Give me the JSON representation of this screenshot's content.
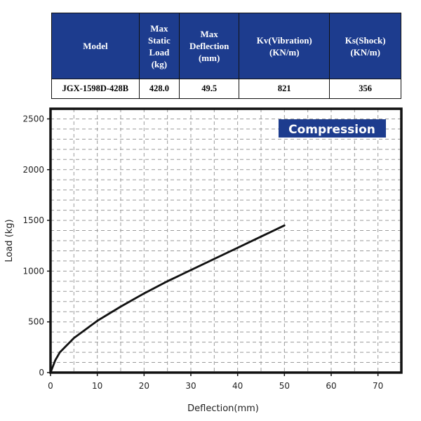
{
  "table": {
    "headers": [
      "Model",
      "Max Static Load (kg)",
      "Max Deflection (mm)",
      "Kv(Vibration) (KN/m)",
      "Ks(Shock) (KN/m)"
    ],
    "row": [
      "JGX-1598D-428B",
      "428.0",
      "49.5",
      "821",
      "356"
    ],
    "header_color": "#1d3c8e"
  },
  "chart_data": {
    "type": "line",
    "annotation": "Compression",
    "annotation_color": "#1d3c8e",
    "xlabel": "Deflection(mm)",
    "ylabel": "Load (kg)",
    "xlim": [
      0,
      75
    ],
    "ylim": [
      0,
      2600
    ],
    "xticks": [
      "0",
      "10",
      "20",
      "30",
      "40",
      "50",
      "60",
      "70"
    ],
    "yticks": [
      "0",
      "500",
      "1000",
      "1500",
      "2000",
      "2500"
    ],
    "grid": true,
    "series": [
      {
        "x": [
          0,
          1,
          2,
          5,
          10,
          15,
          20,
          25,
          30,
          35,
          40,
          45,
          50
        ],
        "y": [
          0,
          120,
          200,
          340,
          510,
          650,
          780,
          900,
          1010,
          1120,
          1230,
          1340,
          1450
        ]
      }
    ]
  }
}
